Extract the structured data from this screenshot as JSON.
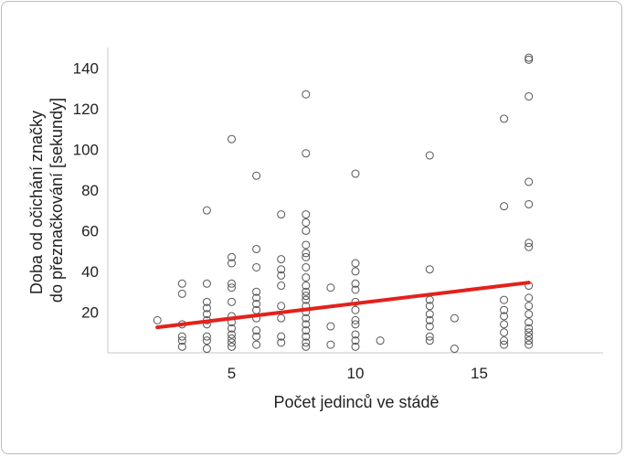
{
  "chart_data": {
    "type": "scatter",
    "xlabel": "Počet jedinců ve stádě",
    "ylabel_line1": "Doba od očichání značky",
    "ylabel_line2": "do přeznačkování [sekundy]",
    "xlim": [
      0,
      20
    ],
    "ylim": [
      0,
      150
    ],
    "xticks": [
      5,
      10,
      15
    ],
    "yticks": [
      20,
      40,
      60,
      80,
      100,
      120,
      140
    ],
    "grid": false,
    "points": [
      [
        2,
        16
      ],
      [
        3,
        34
      ],
      [
        3,
        29
      ],
      [
        3,
        14
      ],
      [
        3,
        8
      ],
      [
        3,
        6
      ],
      [
        3,
        3
      ],
      [
        4,
        70
      ],
      [
        4,
        34
      ],
      [
        4,
        25
      ],
      [
        4,
        22
      ],
      [
        4,
        19
      ],
      [
        4,
        16
      ],
      [
        4,
        14
      ],
      [
        4,
        8
      ],
      [
        4,
        6
      ],
      [
        4,
        2
      ],
      [
        5,
        105
      ],
      [
        5,
        47
      ],
      [
        5,
        44
      ],
      [
        5,
        34
      ],
      [
        5,
        32
      ],
      [
        5,
        25
      ],
      [
        5,
        18
      ],
      [
        5,
        15
      ],
      [
        5,
        12
      ],
      [
        5,
        9
      ],
      [
        5,
        7
      ],
      [
        5,
        5
      ],
      [
        5,
        3
      ],
      [
        6,
        87
      ],
      [
        6,
        51
      ],
      [
        6,
        42
      ],
      [
        6,
        30
      ],
      [
        6,
        27
      ],
      [
        6,
        24
      ],
      [
        6,
        21
      ],
      [
        6,
        17
      ],
      [
        6,
        11
      ],
      [
        6,
        8
      ],
      [
        6,
        4
      ],
      [
        7,
        68
      ],
      [
        7,
        46
      ],
      [
        7,
        41
      ],
      [
        7,
        38
      ],
      [
        7,
        33
      ],
      [
        7,
        23
      ],
      [
        7,
        17
      ],
      [
        7,
        8
      ],
      [
        7,
        5
      ],
      [
        8,
        127
      ],
      [
        8,
        98
      ],
      [
        8,
        68
      ],
      [
        8,
        64
      ],
      [
        8,
        60
      ],
      [
        8,
        53
      ],
      [
        8,
        49
      ],
      [
        8,
        47
      ],
      [
        8,
        42
      ],
      [
        8,
        37
      ],
      [
        8,
        33
      ],
      [
        8,
        30
      ],
      [
        8,
        28
      ],
      [
        8,
        26
      ],
      [
        8,
        23
      ],
      [
        8,
        20
      ],
      [
        8,
        17
      ],
      [
        8,
        14
      ],
      [
        8,
        11
      ],
      [
        8,
        8
      ],
      [
        8,
        5
      ],
      [
        8,
        3
      ],
      [
        9,
        32
      ],
      [
        9,
        13
      ],
      [
        9,
        4
      ],
      [
        10,
        88
      ],
      [
        10,
        44
      ],
      [
        10,
        40
      ],
      [
        10,
        34
      ],
      [
        10,
        31
      ],
      [
        10,
        25
      ],
      [
        10,
        21
      ],
      [
        10,
        16
      ],
      [
        10,
        14
      ],
      [
        10,
        9
      ],
      [
        10,
        6
      ],
      [
        10,
        3
      ],
      [
        11,
        6
      ],
      [
        13,
        97
      ],
      [
        13,
        41
      ],
      [
        13,
        26
      ],
      [
        13,
        23
      ],
      [
        13,
        19
      ],
      [
        13,
        16
      ],
      [
        13,
        13
      ],
      [
        13,
        8
      ],
      [
        13,
        6
      ],
      [
        14,
        17
      ],
      [
        14,
        2
      ],
      [
        16,
        115
      ],
      [
        16,
        72
      ],
      [
        16,
        26
      ],
      [
        16,
        21
      ],
      [
        16,
        18
      ],
      [
        16,
        14
      ],
      [
        16,
        10
      ],
      [
        16,
        6
      ],
      [
        16,
        4
      ],
      [
        17,
        145
      ],
      [
        17,
        144
      ],
      [
        17,
        126
      ],
      [
        17,
        84
      ],
      [
        17,
        73
      ],
      [
        17,
        54
      ],
      [
        17,
        52
      ],
      [
        17,
        33
      ],
      [
        17,
        27
      ],
      [
        17,
        23
      ],
      [
        17,
        19
      ],
      [
        17,
        15
      ],
      [
        17,
        12
      ],
      [
        17,
        10
      ],
      [
        17,
        8
      ],
      [
        17,
        6
      ],
      [
        17,
        4
      ]
    ],
    "trend_line": {
      "x": [
        2,
        17
      ],
      "y": [
        12.5,
        34.5
      ],
      "color": "#e3211c"
    },
    "marker_color": "#555555"
  }
}
